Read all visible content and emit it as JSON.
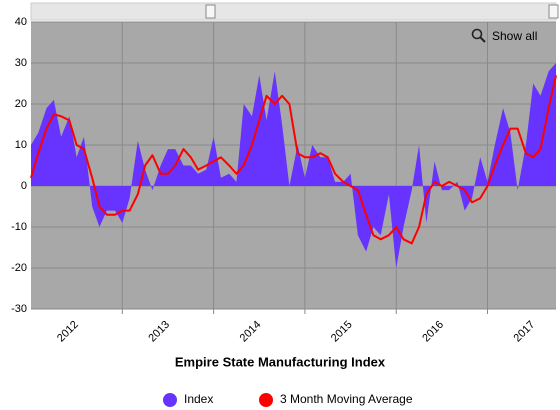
{
  "chart_data": {
    "type": "area-line",
    "title": "Empire State Manufacturing Index",
    "button": "Show all",
    "x": [
      2012,
      2012.08,
      2012.17,
      2012.25,
      2012.33,
      2012.42,
      2012.5,
      2012.58,
      2012.67,
      2012.75,
      2012.83,
      2012.92,
      2013,
      2013.08,
      2013.17,
      2013.25,
      2013.33,
      2013.42,
      2013.5,
      2013.58,
      2013.67,
      2013.75,
      2013.83,
      2013.92,
      2014,
      2014.08,
      2014.17,
      2014.25,
      2014.33,
      2014.42,
      2014.5,
      2014.58,
      2014.67,
      2014.75,
      2014.83,
      2014.92,
      2015,
      2015.08,
      2015.17,
      2015.25,
      2015.33,
      2015.42,
      2015.5,
      2015.58,
      2015.67,
      2015.75,
      2015.83,
      2015.92,
      2016,
      2016.08,
      2016.17,
      2016.25,
      2016.33,
      2016.42,
      2016.5,
      2016.58,
      2016.67,
      2016.75,
      2016.83,
      2016.92,
      2017,
      2017.08,
      2017.17,
      2017.25,
      2017.33,
      2017.42,
      2017.5,
      2017.58,
      2017.67,
      2017.75
    ],
    "series": [
      {
        "name": "Index",
        "color": "#6633ff",
        "values": [
          10,
          13,
          19,
          21,
          12,
          17,
          7,
          12,
          -5,
          -10,
          -6,
          -6,
          -9,
          -3,
          11,
          4,
          -1,
          5,
          9,
          9,
          5,
          5,
          3,
          4,
          12,
          2,
          3,
          1,
          20,
          17,
          27,
          16,
          28,
          15,
          0,
          10,
          2,
          10,
          7,
          7,
          1,
          1,
          3,
          -12,
          -16,
          -10,
          -12,
          -2,
          -20,
          -10,
          -1,
          10,
          -9,
          6,
          -1,
          -1,
          1,
          -6,
          -3,
          7,
          1,
          10,
          19,
          13,
          -1,
          10,
          25,
          22,
          28,
          30
        ]
      },
      {
        "name": "3 Month Moving Average",
        "color": "#ff0000",
        "values": [
          2,
          8,
          14,
          17.5,
          17,
          16,
          10,
          9,
          2,
          -5,
          -7,
          -7,
          -6,
          -6,
          -2,
          5,
          7.5,
          3,
          3,
          5,
          9,
          7,
          4,
          5,
          6,
          7,
          5,
          3,
          5,
          10,
          16,
          22,
          20,
          22,
          20,
          8,
          7,
          7,
          8,
          7,
          3,
          1,
          0,
          -1,
          -7,
          -12,
          -13,
          -12,
          -10,
          -13,
          -14,
          -10,
          -2,
          1,
          0,
          1,
          0,
          -1,
          -4,
          -3,
          0,
          5,
          10,
          14,
          14,
          8,
          7,
          9,
          19,
          27
        ]
      }
    ],
    "xlim": [
      2012,
      2017.75
    ],
    "xticks": [
      2013,
      2014,
      2015,
      2016,
      2017
    ],
    "xlabels": [
      2012,
      2013,
      2014,
      2015,
      2016,
      2017
    ],
    "ylim": [
      -30,
      40
    ],
    "yticks": [
      -30,
      -20,
      -10,
      0,
      10,
      20,
      30,
      40
    ],
    "grid": true,
    "legend": "bottom"
  }
}
